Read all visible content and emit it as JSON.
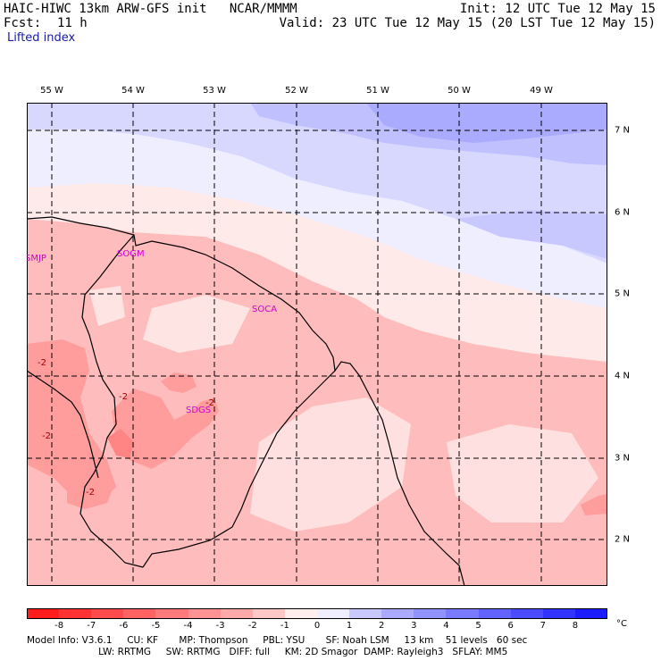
{
  "header": {
    "model_line": "HAIC-HIWC 13km ARW-GFS init   NCAR/MMMM",
    "fcst_label": "Fcst:",
    "fcst_value": "11 h",
    "init_line": "Init: 12 UTC Tue 12 May 15",
    "valid_line": "Valid: 23 UTC Tue 12 May 15 (20 LST Tue 12 May 15)",
    "field_name": "Lifted index"
  },
  "map": {
    "lon_labels": [
      "55 W",
      "54 W",
      "53 W",
      "52 W",
      "51 W",
      "50 W",
      "49 W"
    ],
    "lat_labels": [
      "7 N",
      "6 N",
      "5 N",
      "4 N",
      "3 N",
      "2 N"
    ],
    "stations": [
      {
        "id": "SMJP",
        "lon": -55.3,
        "lat": 5.6
      },
      {
        "id": "SOGM",
        "lon": -54.0,
        "lat": 5.65
      },
      {
        "id": "SOCA",
        "lon": -52.2,
        "lat": 5.0
      },
      {
        "id": "SDGS",
        "lon": -53.1,
        "lat": 3.3
      }
    ],
    "contour_labels": [
      {
        "text": "-2",
        "lon": -55.1,
        "lat": 4.2
      },
      {
        "text": "-2",
        "lon": -54.05,
        "lat": 3.85
      },
      {
        "text": "-2",
        "lon": -55.1,
        "lat": 3.3
      },
      {
        "text": "-2",
        "lon": -54.55,
        "lat": 2.6
      },
      {
        "text": "-2",
        "lon": -52.97,
        "lat": 3.75
      }
    ]
  },
  "colorbar": {
    "labels": [
      "-8",
      "-7",
      "-6",
      "-5",
      "-4",
      "-3",
      "-2",
      "-1",
      "0",
      "1",
      "2",
      "3",
      "4",
      "5",
      "6",
      "7",
      "8"
    ],
    "unit": "°C",
    "colors": [
      "#ff1c1c",
      "#ff3333",
      "#ff4b4b",
      "#ff6262",
      "#ff7a7a",
      "#ff9292",
      "#ffaaaa",
      "#ffc8c8",
      "#ffeeee",
      "#eeeeff",
      "#c8c8ff",
      "#aaaaff",
      "#9292ff",
      "#7a7aff",
      "#6262ff",
      "#4b4bff",
      "#3333ff",
      "#1c1cff"
    ]
  },
  "footer": {
    "line1": "Model Info: V3.6.1     CU: KF       MP: Thompson     PBL: YSU       SF: Noah LSM     13 km    51 levels   60 sec",
    "line2": "                        LW: RRTMG     SW: RRTMG   DIFF: full     KM: 2D Smagor  DAMP: Rayleigh3   SFLAY: MM5"
  }
}
